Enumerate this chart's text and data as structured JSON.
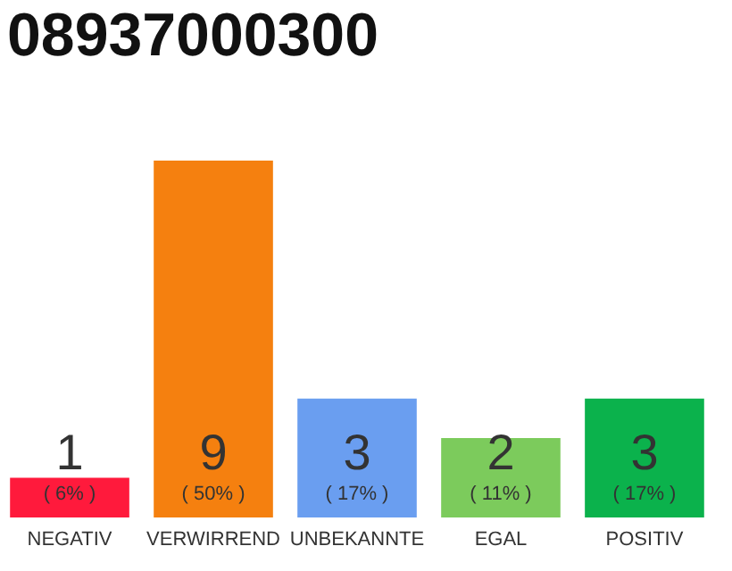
{
  "chart_data": {
    "type": "bar",
    "title": "08937000300",
    "categories": [
      "NEGATIV",
      "VERWIRREND",
      "UNBEKANNTE",
      "EGAL",
      "POSITIV"
    ],
    "values": [
      1,
      9,
      3,
      2,
      3
    ],
    "colors": [
      "#ff1a3c",
      "#f5800f",
      "#6a9ef0",
      "#7ccb5c",
      "#0bb24c"
    ],
    "ylim": [
      0,
      9
    ],
    "tick_labels": "x",
    "data_labels": true,
    "annotations": [
      "( 6% )",
      "( 50% )",
      "( 17% )",
      "( 11% )",
      "( 17% )"
    ]
  }
}
